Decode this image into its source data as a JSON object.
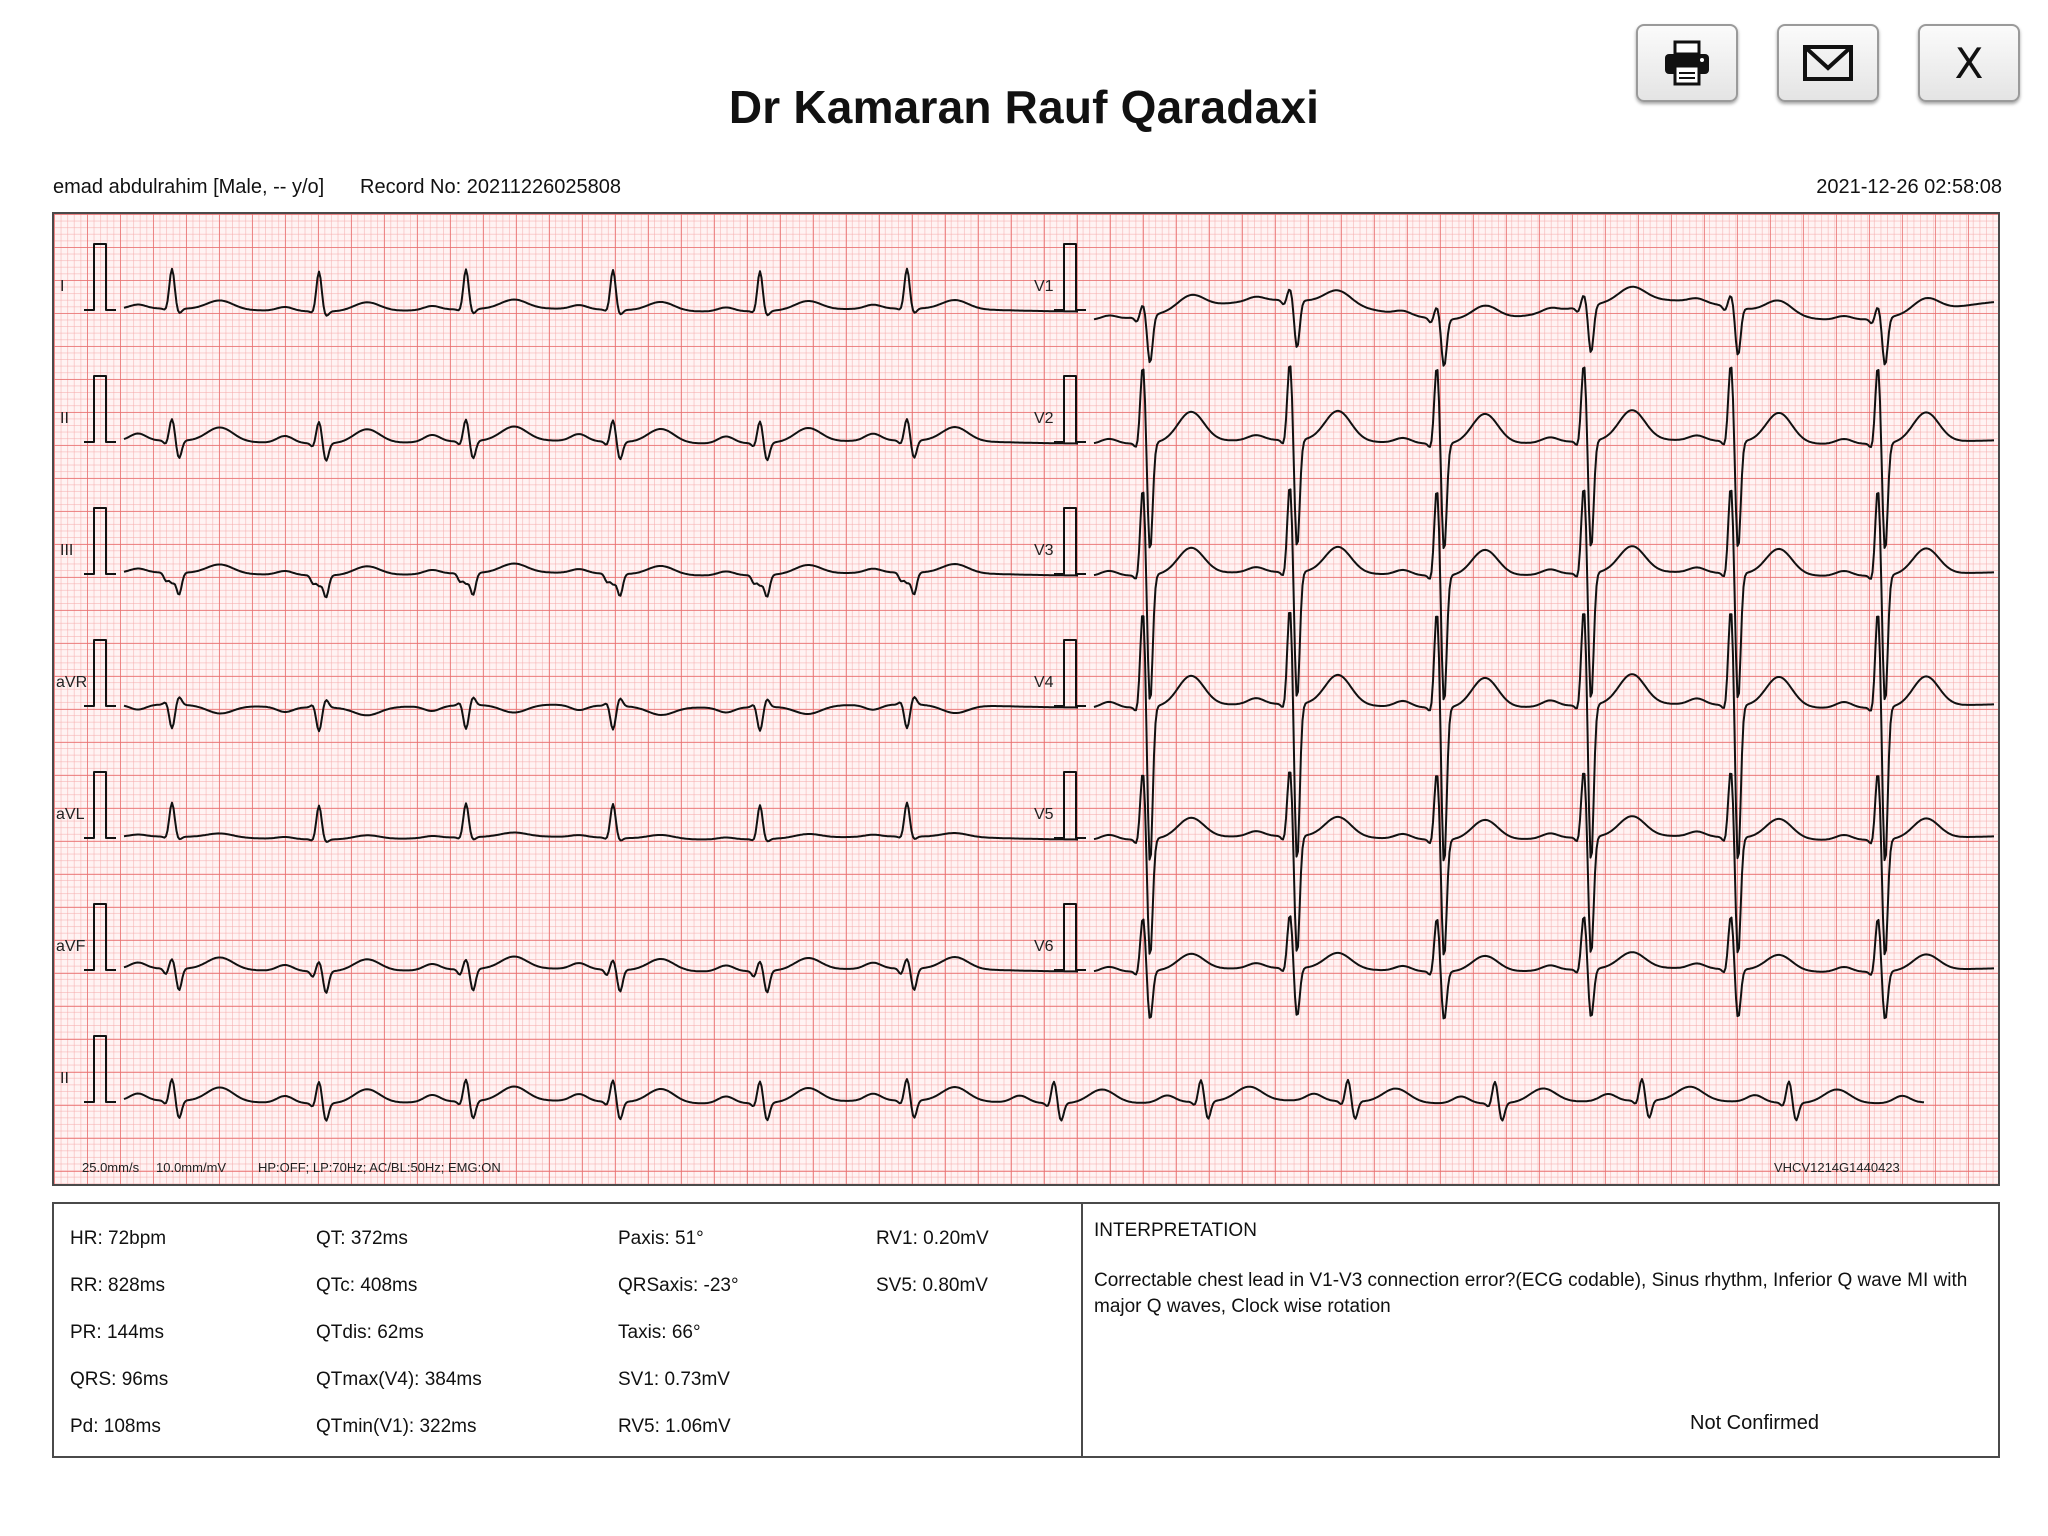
{
  "header": {
    "title": "Dr Kamaran Rauf Qaradaxi",
    "print_icon": "printer-icon",
    "mail_icon": "envelope-icon",
    "close_label": "X"
  },
  "patient": {
    "name_info": "emad abdulrahim [Male, -- y/o]",
    "record": "Record No: 20211226025808",
    "datetime": "2021-12-26 02:58:08"
  },
  "ecg": {
    "leads_left": [
      "I",
      "II",
      "III",
      "aVR",
      "aVL",
      "aVF"
    ],
    "leads_right": [
      "V1",
      "V2",
      "V3",
      "V4",
      "V5",
      "V6"
    ],
    "rhythm_lead": "II",
    "speed": "25.0mm/s",
    "gain": "10.0mm/mV",
    "filters": "HP:OFF; LP:70Hz; AC/BL:50Hz; EMG:ON",
    "device_id": "VHCV1214G1440423",
    "grid_color": "#e86e6e",
    "trace_color": "#111111"
  },
  "measurements": {
    "col1": [
      "HR: 72bpm",
      "RR: 828ms",
      "PR: 144ms",
      "QRS: 96ms",
      "Pd: 108ms"
    ],
    "col2": [
      "QT: 372ms",
      "QTc: 408ms",
      "QTdis: 62ms",
      "QTmax(V4): 384ms",
      "QTmin(V1): 322ms"
    ],
    "col3": [
      "Paxis: 51°",
      "QRSaxis: -23°",
      "Taxis: 66°",
      "SV1: 0.73mV",
      "RV5: 1.06mV"
    ],
    "col4": [
      "RV1: 0.20mV",
      "SV5: 0.80mV"
    ]
  },
  "interpretation": {
    "heading": "INTERPRETATION",
    "text": "Correctable chest lead in V1-V3 connection error?(ECG codable), Sinus rhythm, Inferior Q wave MI with major Q waves, Clock wise rotation",
    "status": "Not Confirmed"
  }
}
